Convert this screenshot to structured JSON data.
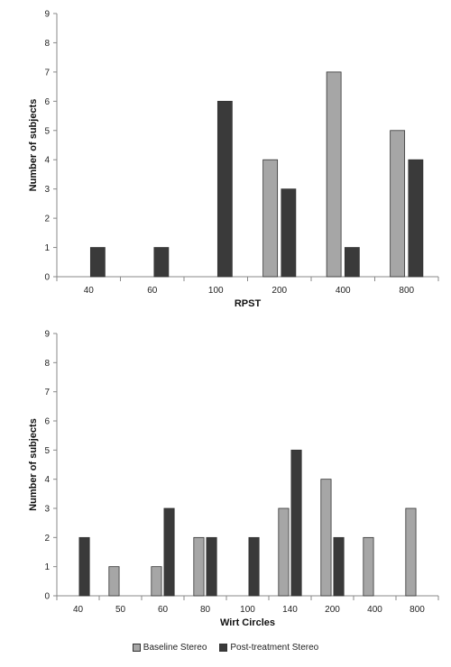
{
  "chart_data": [
    {
      "type": "bar",
      "categories": [
        "40",
        "60",
        "100",
        "200",
        "400",
        "800"
      ],
      "series": [
        {
          "name": "Baseline Stereo",
          "values": [
            0,
            0,
            0,
            4,
            7,
            5
          ]
        },
        {
          "name": "Post-treatment Stereo",
          "values": [
            1,
            1,
            6,
            3,
            1,
            4
          ]
        }
      ],
      "xlabel": "RPST",
      "ylabel": "Number of subjects",
      "ylim": [
        0,
        9
      ],
      "yticks": [
        "0",
        "1",
        "2",
        "3",
        "4",
        "5",
        "6",
        "7",
        "8",
        "9"
      ],
      "grid": false
    },
    {
      "type": "bar",
      "categories": [
        "40",
        "50",
        "60",
        "80",
        "100",
        "140",
        "200",
        "400",
        "800"
      ],
      "series": [
        {
          "name": "Baseline Stereo",
          "values": [
            0,
            1,
            1,
            2,
            0,
            3,
            4,
            2,
            3
          ]
        },
        {
          "name": "Post-treatment Stereo",
          "values": [
            2,
            0,
            3,
            2,
            2,
            5,
            2,
            0,
            0
          ]
        }
      ],
      "xlabel": "Wirt Circles",
      "ylabel": "Number of subjects",
      "ylim": [
        0,
        9
      ],
      "yticks": [
        "0",
        "1",
        "2",
        "3",
        "4",
        "5",
        "6",
        "7",
        "8",
        "9"
      ],
      "grid": false
    }
  ],
  "legend": {
    "position": "bottom-center",
    "items": [
      {
        "label": "Baseline Stereo",
        "color": "#a6a6a6"
      },
      {
        "label": "Post-treatment Stereo",
        "color": "#3a3a3a"
      }
    ]
  },
  "colors": {
    "baseline": "#a6a6a6",
    "post": "#3a3a3a",
    "bar_stroke": "#333333",
    "axis": "#888888"
  }
}
